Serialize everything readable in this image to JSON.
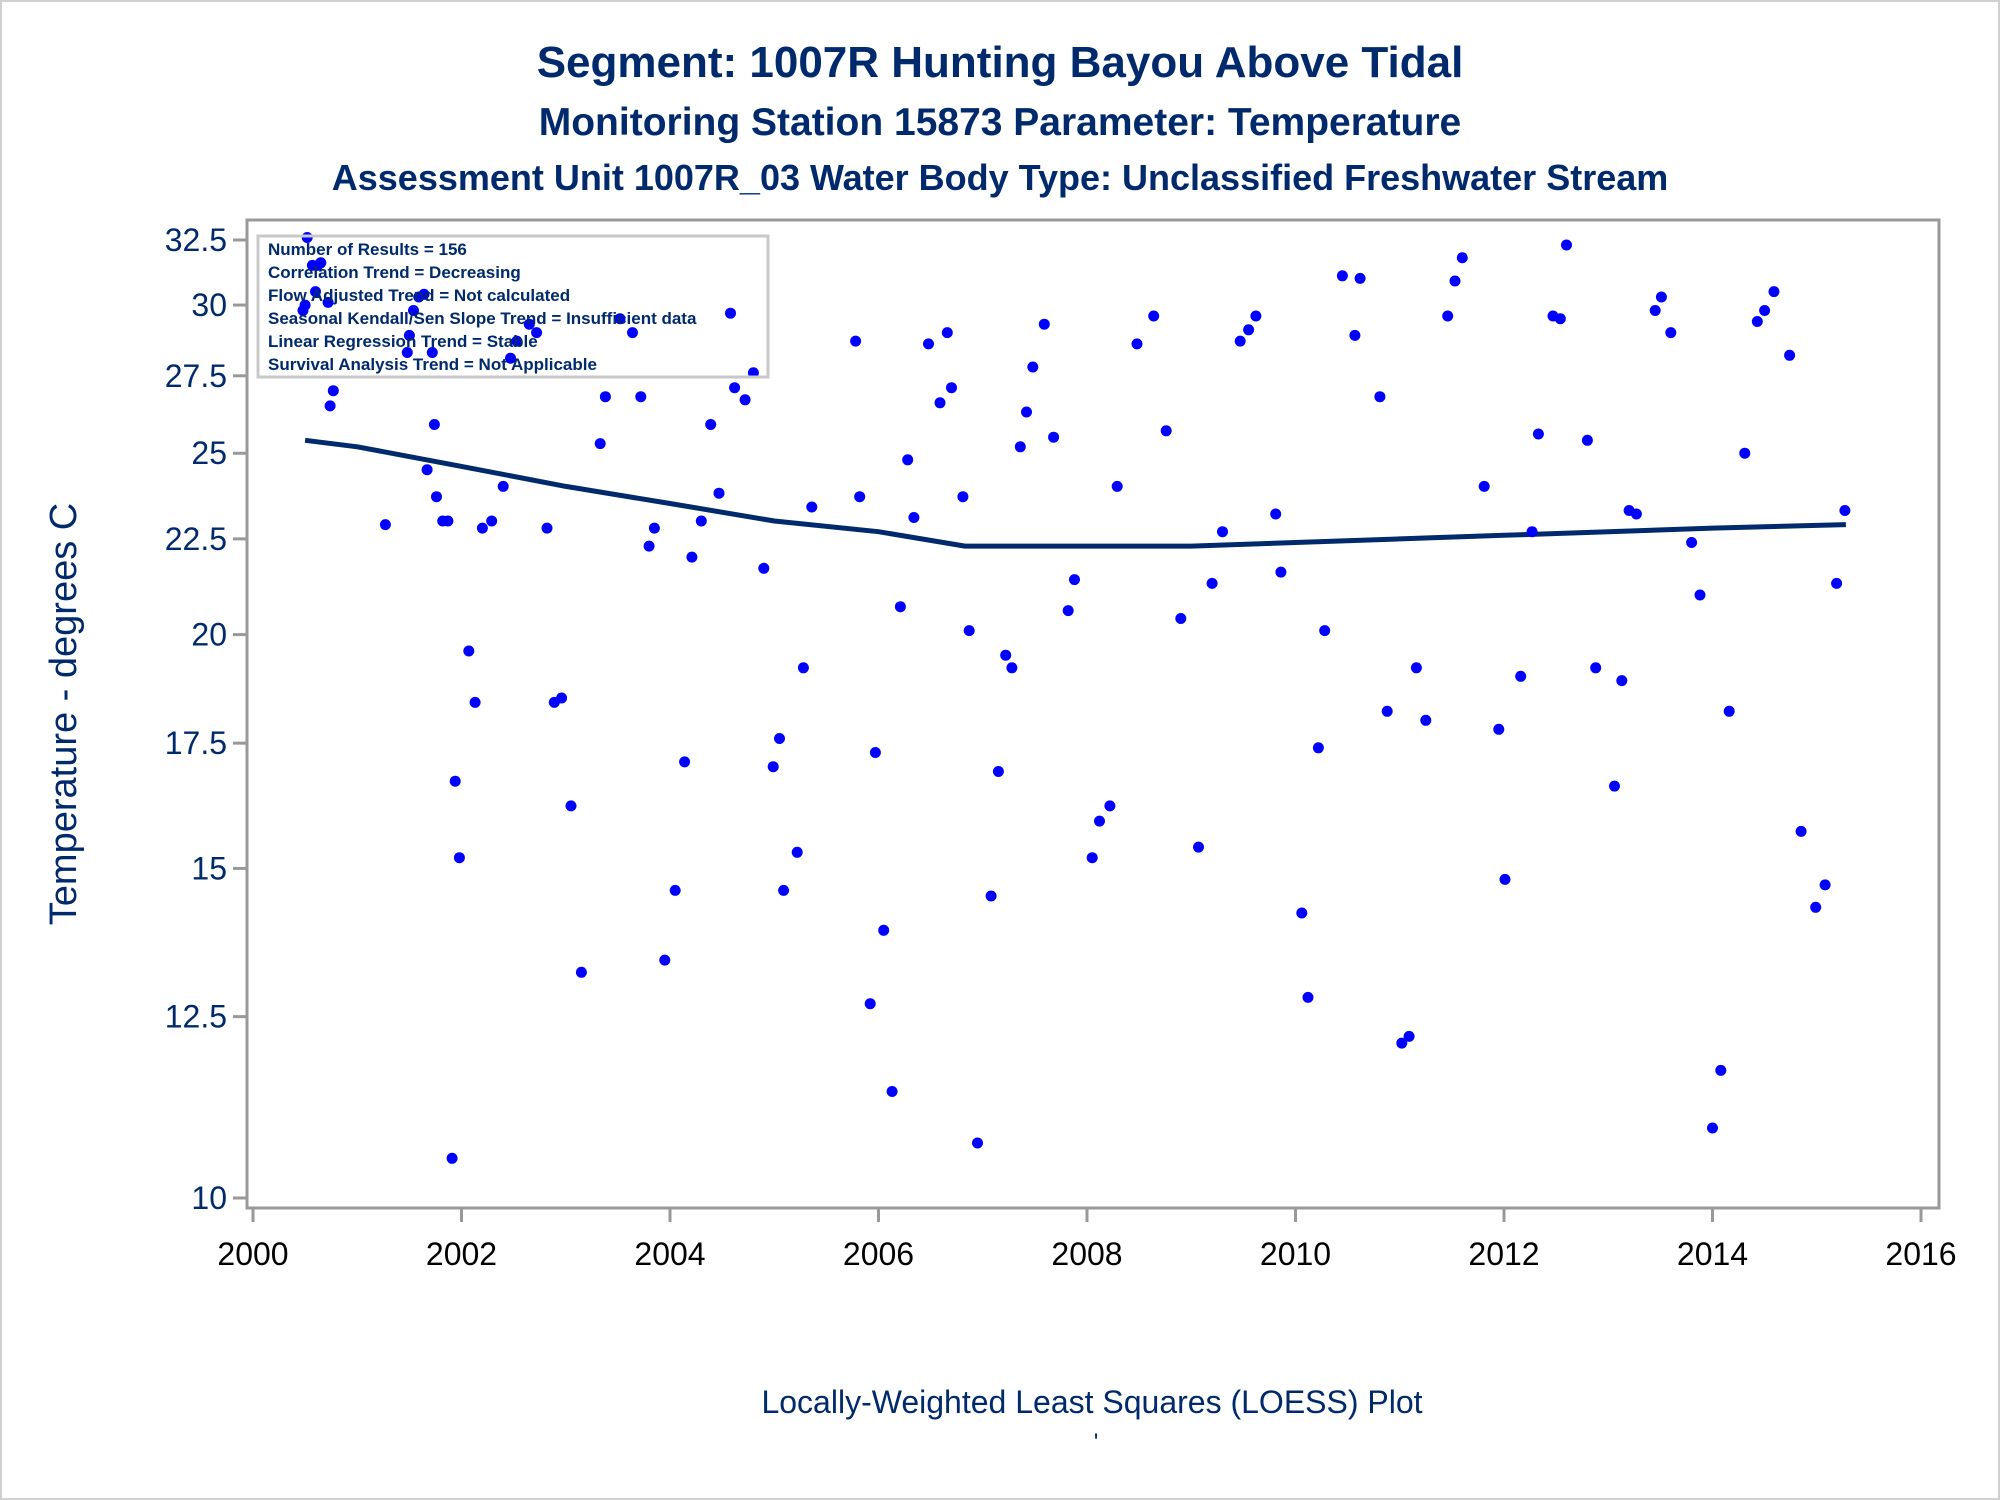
{
  "titles": {
    "line1": "Segment: 1007R  Hunting Bayou Above Tidal",
    "line2": "Monitoring Station 15873 Parameter: Temperature",
    "line3": "Assessment Unit 1007R_03   Water Body Type: Unclassified Freshwater Stream"
  },
  "stats_box": {
    "lines": [
      "Number of Results = 156",
      "Correlation Trend = Decreasing",
      "Flow Adjusted Trend = Not calculated",
      "Seasonal Kendall/Sen Slope Trend = Insufficient data",
      "Linear Regression Trend = Stable",
      "Survival Analysis Trend = Not Applicable"
    ]
  },
  "footnote": "Locally-Weighted Least Squares (LOESS) Plot",
  "footnote_mark": "'",
  "colors": {
    "text": "#002a6c",
    "points": "#0000ff",
    "loess": "#002a6c",
    "frame": "#999999"
  },
  "chart_data": {
    "type": "scatter",
    "xlabel": "",
    "ylabel": "Temperature - degrees C",
    "xlim": [
      2000,
      2016
    ],
    "ylim": [
      10,
      32.5
    ],
    "y_scale": "log",
    "xticks": [
      2000,
      2002,
      2004,
      2006,
      2008,
      2010,
      2012,
      2014,
      2016
    ],
    "yticks": [
      {
        "value": 10,
        "label": "10"
      },
      {
        "value": 12.5,
        "label": "12.5"
      },
      {
        "value": 15,
        "label": "15"
      },
      {
        "value": 17.5,
        "label": "17.5"
      },
      {
        "value": 20,
        "label": "20"
      },
      {
        "value": 22.5,
        "label": "22.5"
      },
      {
        "value": 25,
        "label": "25"
      },
      {
        "value": 27.5,
        "label": "27.5"
      },
      {
        "value": 30,
        "label": "30"
      },
      {
        "value": 32.5,
        "label": "32.5"
      }
    ],
    "grid": false,
    "series": [
      {
        "type": "scatter",
        "points": [
          [
            2000.48,
            29.8
          ],
          [
            2000.5,
            30.0
          ],
          [
            2000.52,
            32.6
          ],
          [
            2000.57,
            31.5
          ],
          [
            2000.62,
            31.5
          ],
          [
            2000.6,
            30.5
          ],
          [
            2000.65,
            31.6
          ],
          [
            2000.72,
            30.1
          ],
          [
            2000.74,
            26.5
          ],
          [
            2000.77,
            27.0
          ],
          [
            2001.27,
            22.9
          ],
          [
            2001.48,
            28.3
          ],
          [
            2001.5,
            28.9
          ],
          [
            2001.54,
            29.8
          ],
          [
            2001.59,
            30.3
          ],
          [
            2001.64,
            30.4
          ],
          [
            2001.67,
            24.5
          ],
          [
            2001.72,
            28.3
          ],
          [
            2001.74,
            25.9
          ],
          [
            2001.76,
            23.7
          ],
          [
            2001.82,
            23.0
          ],
          [
            2001.87,
            23.0
          ],
          [
            2001.91,
            10.5
          ],
          [
            2001.94,
            16.7
          ],
          [
            2001.98,
            15.2
          ],
          [
            2002.07,
            19.6
          ],
          [
            2002.13,
            18.4
          ],
          [
            2002.2,
            22.8
          ],
          [
            2002.29,
            23.0
          ],
          [
            2002.4,
            24.0
          ],
          [
            2002.47,
            28.1
          ],
          [
            2002.53,
            28.7
          ],
          [
            2002.65,
            29.3
          ],
          [
            2002.72,
            29.0
          ],
          [
            2002.82,
            22.8
          ],
          [
            2002.89,
            18.4
          ],
          [
            2002.96,
            18.5
          ],
          [
            2003.05,
            16.2
          ],
          [
            2003.15,
            13.2
          ],
          [
            2003.33,
            25.3
          ],
          [
            2003.38,
            26.8
          ],
          [
            2003.52,
            29.5
          ],
          [
            2003.64,
            29.0
          ],
          [
            2003.72,
            26.8
          ],
          [
            2003.8,
            22.3
          ],
          [
            2003.85,
            22.8
          ],
          [
            2003.95,
            13.4
          ],
          [
            2004.05,
            14.6
          ],
          [
            2004.14,
            17.1
          ],
          [
            2004.21,
            22.0
          ],
          [
            2004.3,
            23.0
          ],
          [
            2004.39,
            25.9
          ],
          [
            2004.47,
            23.8
          ],
          [
            2004.58,
            29.7
          ],
          [
            2004.62,
            27.1
          ],
          [
            2004.72,
            26.7
          ],
          [
            2004.8,
            27.6
          ],
          [
            2004.9,
            21.7
          ],
          [
            2004.99,
            17.0
          ],
          [
            2005.05,
            17.6
          ],
          [
            2005.09,
            14.6
          ],
          [
            2005.22,
            15.3
          ],
          [
            2005.28,
            19.2
          ],
          [
            2005.36,
            23.4
          ],
          [
            2005.78,
            28.7
          ],
          [
            2005.82,
            23.7
          ],
          [
            2005.92,
            12.7
          ],
          [
            2005.97,
            17.3
          ],
          [
            2006.05,
            13.9
          ],
          [
            2006.13,
            11.4
          ],
          [
            2006.21,
            20.7
          ],
          [
            2006.28,
            24.8
          ],
          [
            2006.34,
            23.1
          ],
          [
            2006.48,
            28.6
          ],
          [
            2006.59,
            26.6
          ],
          [
            2006.66,
            29.0
          ],
          [
            2006.7,
            27.1
          ],
          [
            2006.81,
            23.7
          ],
          [
            2006.87,
            20.1
          ],
          [
            2006.95,
            10.7
          ],
          [
            2007.08,
            14.5
          ],
          [
            2007.15,
            16.9
          ],
          [
            2007.22,
            19.5
          ],
          [
            2007.28,
            19.2
          ],
          [
            2007.36,
            25.2
          ],
          [
            2007.42,
            26.3
          ],
          [
            2007.48,
            27.8
          ],
          [
            2007.59,
            29.3
          ],
          [
            2007.68,
            25.5
          ],
          [
            2007.82,
            20.6
          ],
          [
            2007.88,
            21.4
          ],
          [
            2008.05,
            15.2
          ],
          [
            2008.12,
            15.9
          ],
          [
            2008.22,
            16.2
          ],
          [
            2008.29,
            24.0
          ],
          [
            2008.48,
            28.6
          ],
          [
            2008.64,
            29.6
          ],
          [
            2008.76,
            25.7
          ],
          [
            2008.9,
            20.4
          ],
          [
            2009.07,
            15.4
          ],
          [
            2009.2,
            21.3
          ],
          [
            2009.3,
            22.7
          ],
          [
            2009.47,
            28.7
          ],
          [
            2009.55,
            29.1
          ],
          [
            2009.62,
            29.6
          ],
          [
            2009.81,
            23.2
          ],
          [
            2009.86,
            21.6
          ],
          [
            2010.06,
            14.2
          ],
          [
            2010.12,
            12.8
          ],
          [
            2010.22,
            17.4
          ],
          [
            2010.28,
            20.1
          ],
          [
            2010.45,
            31.1
          ],
          [
            2010.57,
            28.9
          ],
          [
            2010.62,
            31.0
          ],
          [
            2010.81,
            26.8
          ],
          [
            2010.88,
            18.2
          ],
          [
            2011.02,
            12.1
          ],
          [
            2011.09,
            12.2
          ],
          [
            2011.16,
            19.2
          ],
          [
            2011.25,
            18.0
          ],
          [
            2011.46,
            29.6
          ],
          [
            2011.53,
            30.9
          ],
          [
            2011.6,
            31.8
          ],
          [
            2011.81,
            24.0
          ],
          [
            2011.95,
            17.8
          ],
          [
            2012.01,
            14.8
          ],
          [
            2012.16,
            19.0
          ],
          [
            2012.27,
            22.7
          ],
          [
            2012.33,
            25.6
          ],
          [
            2012.47,
            29.6
          ],
          [
            2012.54,
            29.5
          ],
          [
            2012.6,
            32.3
          ],
          [
            2012.8,
            25.4
          ],
          [
            2012.88,
            19.2
          ],
          [
            2013.06,
            16.6
          ],
          [
            2013.13,
            18.9
          ],
          [
            2013.2,
            23.3
          ],
          [
            2013.27,
            23.2
          ],
          [
            2013.45,
            29.8
          ],
          [
            2013.51,
            30.3
          ],
          [
            2013.6,
            29.0
          ],
          [
            2013.8,
            22.4
          ],
          [
            2013.88,
            21.0
          ],
          [
            2014.0,
            10.9
          ],
          [
            2014.08,
            11.7
          ],
          [
            2014.16,
            18.2
          ],
          [
            2014.31,
            25.0
          ],
          [
            2014.43,
            29.4
          ],
          [
            2014.5,
            29.8
          ],
          [
            2014.59,
            30.5
          ],
          [
            2014.74,
            28.2
          ],
          [
            2014.85,
            15.7
          ],
          [
            2014.99,
            14.3
          ],
          [
            2015.08,
            14.7
          ],
          [
            2015.19,
            21.3
          ],
          [
            2015.27,
            23.3
          ]
        ]
      },
      {
        "type": "line",
        "name": "",
        "x": [
          2000.5,
          2001.0,
          2002.0,
          2003.0,
          2004.0,
          2005.0,
          2006.0,
          2006.83,
          2007.0,
          2008.0,
          2009.0,
          2010.0,
          2011.0,
          2012.0,
          2013.0,
          2014.0,
          2015.28
        ],
        "y": [
          25.4,
          25.2,
          24.6,
          24.0,
          23.5,
          23.0,
          22.7,
          22.3,
          22.3,
          22.3,
          22.3,
          22.4,
          22.5,
          22.6,
          22.7,
          22.8,
          22.9
        ]
      }
    ]
  }
}
